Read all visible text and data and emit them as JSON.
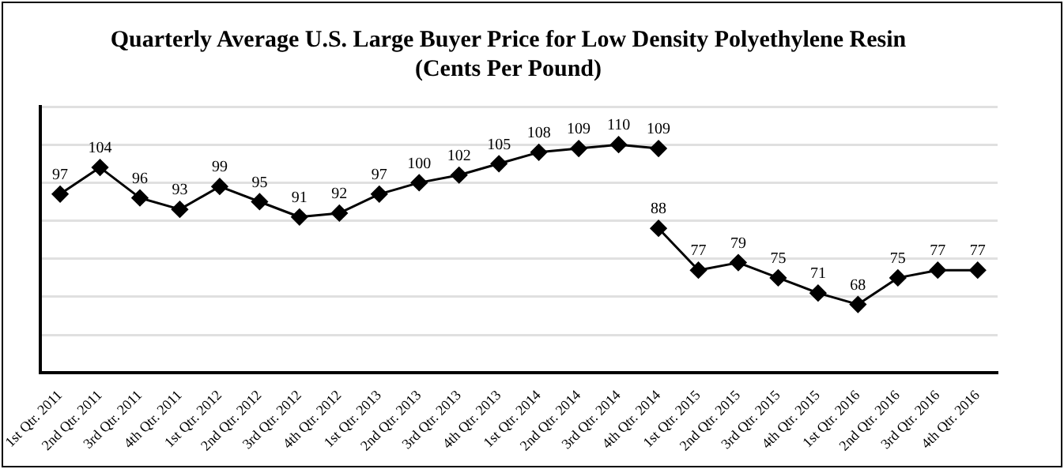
{
  "chart_data": {
    "type": "line",
    "title": [
      "Quarterly Average U.S. Large Buyer Price for Low Density Polyethylene Resin",
      "(Cents Per Pound)"
    ],
    "categories": [
      "1st Qtr. 2011",
      "2nd Qtr. 2011",
      "3rd Qtr. 2011",
      "4th Qtr. 2011",
      "1st Qtr. 2012",
      "2nd Qtr. 2012",
      "3rd Qtr. 2012",
      "4th Qtr. 2012",
      "1st Qtr. 2013",
      "2nd Qtr. 2013",
      "3rd Qtr. 2013",
      "4th Qtr. 2013",
      "1st Qtr. 2014",
      "2nd Qtr. 2014",
      "3rd Qtr. 2014",
      "4th Qtr. 2014",
      "1st Qtr. 2015",
      "2nd Qtr. 2015",
      "3rd Qtr. 2015",
      "4th Qtr. 2015",
      "1st Qtr. 2016",
      "2nd Qtr. 2016",
      "3rd Qtr. 2016",
      "4th Qtr. 2016"
    ],
    "series": [
      {
        "color": "#000000",
        "values": [
          97,
          104,
          96,
          93,
          99,
          95,
          91,
          92,
          97,
          100,
          102,
          105,
          108,
          109,
          110,
          109,
          null,
          null,
          null,
          null,
          null,
          null,
          null,
          null
        ]
      },
      {
        "color": "#000000",
        "values": [
          null,
          null,
          null,
          null,
          null,
          null,
          null,
          null,
          null,
          null,
          null,
          null,
          null,
          null,
          null,
          88,
          77,
          79,
          75,
          71,
          68,
          75,
          77,
          77
        ]
      }
    ],
    "ylim": [
      50,
      120
    ],
    "yticks": [
      {
        "value": 50,
        "label": null
      },
      {
        "value": 60,
        "label": null
      },
      {
        "value": 70,
        "label": null
      },
      {
        "value": 80,
        "label": null
      },
      {
        "value": 90,
        "label": null
      },
      {
        "value": 100,
        "label": null
      },
      {
        "value": 110,
        "label": null
      },
      {
        "value": 120,
        "label": null
      }
    ],
    "grid": "y",
    "tick_labels": "x",
    "legend": false,
    "marker": "diamond",
    "line_style": "solid",
    "data_labels": true
  }
}
